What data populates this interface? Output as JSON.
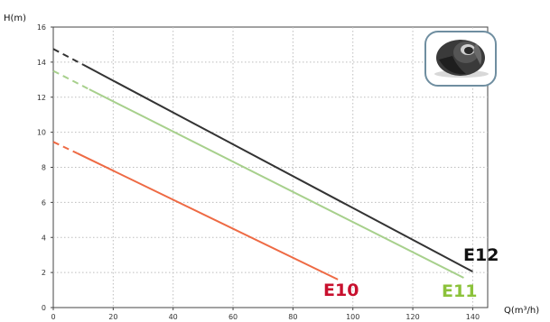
{
  "chart_data": {
    "type": "line",
    "xlabel": "Q(m³/h)",
    "ylabel": "H(m)",
    "xlim": [
      0,
      145
    ],
    "ylim": [
      0,
      16
    ],
    "x_ticks": [
      0,
      20,
      40,
      60,
      80,
      100,
      120,
      140
    ],
    "y_ticks": [
      0,
      2,
      4,
      6,
      8,
      10,
      12,
      14,
      16
    ],
    "x_tick_labels": [
      "0",
      "20",
      "40",
      "60",
      "80",
      "100",
      "120",
      "140"
    ],
    "y_tick_labels": [
      "0",
      "2",
      "4",
      "6",
      "8",
      "10",
      "12",
      "14",
      "16"
    ],
    "grid": true,
    "has_product_image": true,
    "series": [
      {
        "name": "E10",
        "color": "#ee6a44",
        "label_color": "#c8102e",
        "dashed_segment": {
          "x": [
            0,
            8
          ],
          "y": [
            9.45,
            8.8
          ]
        },
        "x": [
          8,
          95
        ],
        "y": [
          8.8,
          1.6
        ]
      },
      {
        "name": "E11",
        "color": "#a7d08c",
        "label_color": "#8cc23b",
        "dashed_segment": {
          "x": [
            0,
            12
          ],
          "y": [
            13.5,
            12.45
          ]
        },
        "x": [
          12,
          137
        ],
        "y": [
          12.45,
          1.7
        ]
      },
      {
        "name": "E12",
        "color": "#333333",
        "label_color": "#111111",
        "dashed_segment": {
          "x": [
            0,
            10
          ],
          "y": [
            14.75,
            13.85
          ]
        },
        "x": [
          10,
          140
        ],
        "y": [
          13.85,
          2.05
        ]
      }
    ]
  }
}
